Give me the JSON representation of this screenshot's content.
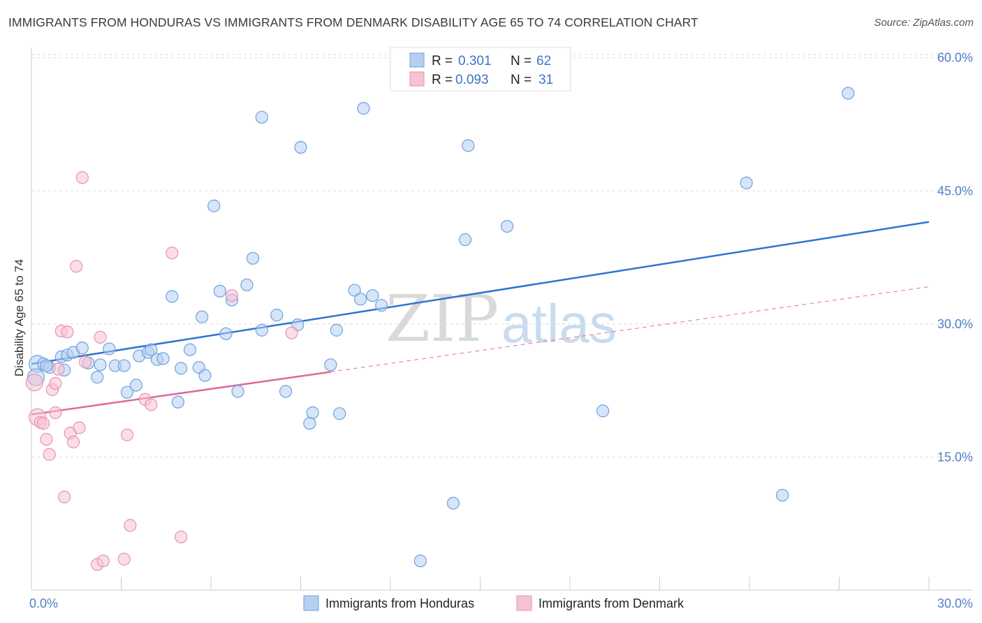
{
  "title": "IMMIGRANTS FROM HONDURAS VS IMMIGRANTS FROM DENMARK DISABILITY AGE 65 TO 74 CORRELATION CHART",
  "source": "Source: ZipAtlas.com",
  "watermark": {
    "zip": "ZIP",
    "atlas": "atlas"
  },
  "legend": {
    "rows": [
      {
        "r_label": "R =",
        "r_value": "0.301",
        "n_label": "N =",
        "n_value": "62"
      },
      {
        "r_label": "R =",
        "r_value": "0.093",
        "n_label": "N =",
        "n_value": "31"
      }
    ]
  },
  "chart_data": {
    "type": "scatter",
    "title": "IMMIGRANTS FROM HONDURAS VS IMMIGRANTS FROM DENMARK DISABILITY AGE 65 TO 74 CORRELATION CHART",
    "xlabel": "",
    "ylabel": "Disability Age 65 to 74",
    "xlim": [
      0,
      30
    ],
    "ylim": [
      0,
      61
    ],
    "x_tick_labels": [
      "0.0%",
      "30.0%"
    ],
    "y_ticks": [
      15,
      30,
      45,
      60
    ],
    "y_tick_labels": [
      "15.0%",
      "30.0%",
      "45.0%",
      "60.0%"
    ],
    "grid": true,
    "legend_position": "top-center",
    "series": [
      {
        "name": "Immigrants from Honduras",
        "color": "#6fa0e0",
        "fill": "#b5cff0",
        "line_color": "#2f72d2",
        "trend": {
          "x": [
            0,
            30
          ],
          "y": [
            25.5,
            41.5
          ],
          "style": "solid"
        },
        "points": [
          [
            0.2,
            25.5
          ],
          [
            0.4,
            25.5
          ],
          [
            0.6,
            25.1
          ],
          [
            1.0,
            26.3
          ],
          [
            1.1,
            24.8
          ],
          [
            1.2,
            26.5
          ],
          [
            1.4,
            26.8
          ],
          [
            1.7,
            27.3
          ],
          [
            1.9,
            25.6
          ],
          [
            2.2,
            24.0
          ],
          [
            2.3,
            25.4
          ],
          [
            2.6,
            27.2
          ],
          [
            2.8,
            25.3
          ],
          [
            3.1,
            25.3
          ],
          [
            3.2,
            22.3
          ],
          [
            3.5,
            23.1
          ],
          [
            3.6,
            26.4
          ],
          [
            3.9,
            26.8
          ],
          [
            4.0,
            27.1
          ],
          [
            4.2,
            26.0
          ],
          [
            4.4,
            26.1
          ],
          [
            4.7,
            33.1
          ],
          [
            4.9,
            21.2
          ],
          [
            5.0,
            25.0
          ],
          [
            5.3,
            27.1
          ],
          [
            5.6,
            25.1
          ],
          [
            5.7,
            30.8
          ],
          [
            5.8,
            24.2
          ],
          [
            6.1,
            43.3
          ],
          [
            6.3,
            33.7
          ],
          [
            6.5,
            28.9
          ],
          [
            6.7,
            32.7
          ],
          [
            6.9,
            22.4
          ],
          [
            7.2,
            34.4
          ],
          [
            7.4,
            37.4
          ],
          [
            7.7,
            29.3
          ],
          [
            7.7,
            53.3
          ],
          [
            8.2,
            31.0
          ],
          [
            8.5,
            22.4
          ],
          [
            8.9,
            29.9
          ],
          [
            9.0,
            49.9
          ],
          [
            9.3,
            18.8
          ],
          [
            9.4,
            20.0
          ],
          [
            10.0,
            25.4
          ],
          [
            10.2,
            29.3
          ],
          [
            10.3,
            19.9
          ],
          [
            10.8,
            33.8
          ],
          [
            11.0,
            32.8
          ],
          [
            11.1,
            54.3
          ],
          [
            11.4,
            33.2
          ],
          [
            11.7,
            32.1
          ],
          [
            13.0,
            3.3
          ],
          [
            14.1,
            9.8
          ],
          [
            14.5,
            39.5
          ],
          [
            14.6,
            50.1
          ],
          [
            15.9,
            41.0
          ],
          [
            19.1,
            20.2
          ],
          [
            23.9,
            45.9
          ],
          [
            25.1,
            10.7
          ],
          [
            27.3,
            56.0
          ],
          [
            0.15,
            24.0
          ],
          [
            0.5,
            25.3
          ]
        ]
      },
      {
        "name": "Immigrants from Denmark",
        "color": "#e892ad",
        "fill": "#f5c3d3",
        "line_color": "#e0679a",
        "trend": {
          "x": [
            0,
            10
          ],
          "y": [
            19.8,
            24.6
          ],
          "style": "solid",
          "extended_to": [
            30,
            34.2
          ],
          "extended_style": "dashed"
        },
        "points": [
          [
            0.1,
            23.4
          ],
          [
            0.2,
            19.5
          ],
          [
            0.3,
            18.9
          ],
          [
            0.4,
            18.8
          ],
          [
            0.5,
            17.0
          ],
          [
            0.6,
            15.3
          ],
          [
            0.7,
            22.6
          ],
          [
            0.8,
            20.0
          ],
          [
            0.8,
            23.3
          ],
          [
            0.9,
            24.9
          ],
          [
            1.0,
            29.2
          ],
          [
            1.1,
            10.5
          ],
          [
            1.2,
            29.1
          ],
          [
            1.3,
            17.7
          ],
          [
            1.4,
            16.7
          ],
          [
            1.5,
            36.5
          ],
          [
            1.6,
            18.3
          ],
          [
            1.7,
            46.5
          ],
          [
            1.8,
            25.7
          ],
          [
            2.2,
            2.9
          ],
          [
            2.3,
            28.5
          ],
          [
            2.4,
            3.3
          ],
          [
            3.1,
            3.5
          ],
          [
            3.2,
            17.5
          ],
          [
            3.3,
            7.3
          ],
          [
            3.8,
            21.5
          ],
          [
            4.0,
            20.9
          ],
          [
            4.7,
            38.0
          ],
          [
            5.0,
            6.0
          ],
          [
            6.7,
            33.2
          ],
          [
            8.7,
            29.0
          ]
        ]
      }
    ]
  },
  "bottom_legend": {
    "items": [
      {
        "label": "Immigrants from Honduras"
      },
      {
        "label": "Immigrants from Denmark"
      }
    ]
  }
}
